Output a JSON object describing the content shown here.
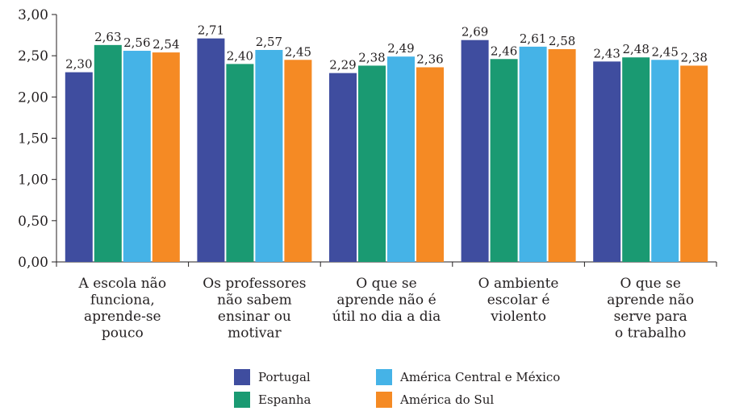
{
  "chart_data": {
    "type": "bar",
    "title": "",
    "xlabel": "",
    "ylabel": "",
    "ylim": [
      0,
      3
    ],
    "yticks": [
      "0,00",
      "0,50",
      "1,00",
      "1,50",
      "2,00",
      "2,50",
      "3,00"
    ],
    "grid": false,
    "legend_position": "bottom",
    "categories": [
      [
        "A escola não",
        "funciona,",
        "aprende-se",
        "pouco"
      ],
      [
        "Os professores",
        "não sabem",
        "ensinar ou",
        "motivar"
      ],
      [
        "O que se",
        "aprende não é",
        "útil no dia a dia"
      ],
      [
        "O ambiente",
        "escolar é",
        "violento"
      ],
      [
        "O que se",
        "aprende não",
        "serve para",
        "o trabalho"
      ]
    ],
    "series": [
      {
        "name": "Portugal",
        "color": "#3f4d9f",
        "values": [
          2.3,
          2.71,
          2.29,
          2.69,
          2.43
        ],
        "labels": [
          "2,30",
          "2,71",
          "2,29",
          "2,69",
          "2,43"
        ]
      },
      {
        "name": "Espanha",
        "color": "#1a9a72",
        "values": [
          2.63,
          2.4,
          2.38,
          2.46,
          2.48
        ],
        "labels": [
          "2,63",
          "2,40",
          "2,38",
          "2,46",
          "2,48"
        ]
      },
      {
        "name": "América Central e México",
        "color": "#45b3e7",
        "values": [
          2.56,
          2.57,
          2.49,
          2.61,
          2.45
        ],
        "labels": [
          "2,56",
          "2,57",
          "2,49",
          "2,61",
          "2,45"
        ]
      },
      {
        "name": "América do Sul",
        "color": "#f58a24",
        "values": [
          2.54,
          2.45,
          2.36,
          2.58,
          2.38
        ],
        "labels": [
          "2,54",
          "2,45",
          "2,36",
          "2,58",
          "2,38"
        ]
      }
    ]
  }
}
